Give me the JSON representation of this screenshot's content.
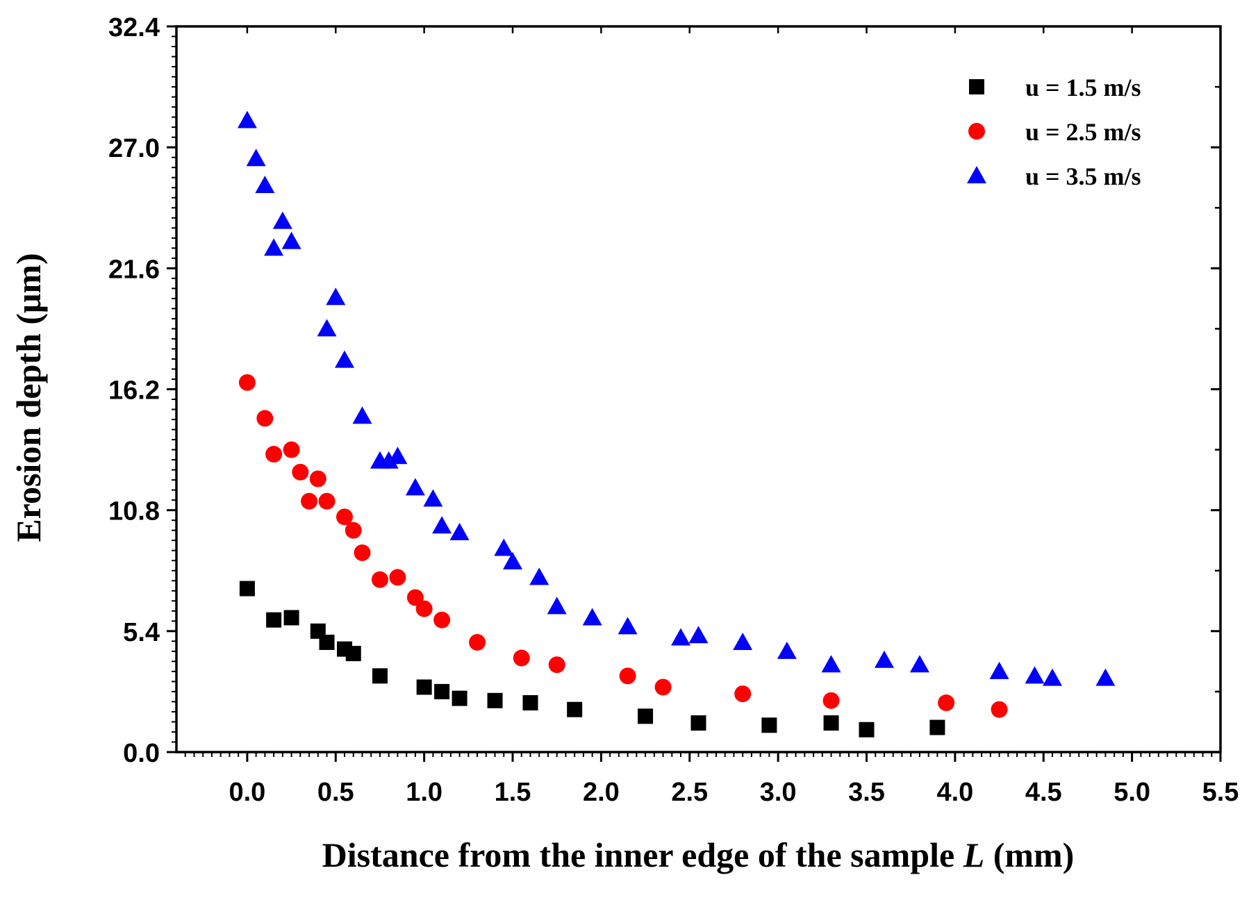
{
  "chart_data": {
    "type": "scatter",
    "title": "",
    "xlabel_main": "Distance from the inner edge of the sample ",
    "xlabel_var": "L",
    "xlabel_unit": " (mm)",
    "ylabel": "Erosion depth (μm)",
    "xlim": [
      -0.4,
      5.5
    ],
    "ylim": [
      0,
      32.4
    ],
    "x_ticks": [
      0.0,
      0.5,
      1.0,
      1.5,
      2.0,
      2.5,
      3.0,
      3.5,
      4.0,
      4.5,
      5.0,
      5.5
    ],
    "x_tick_labels": [
      "0.0",
      "0.5",
      "1.0",
      "1.5",
      "2.0",
      "2.5",
      "3.0",
      "3.5",
      "4.0",
      "4.5",
      "5.0",
      "5.5"
    ],
    "y_ticks": [
      0.0,
      5.4,
      10.8,
      16.2,
      21.6,
      27.0,
      32.4
    ],
    "y_tick_labels": [
      "0.0",
      "5.4",
      "10.8",
      "16.2",
      "21.6",
      "27.0",
      "32.4"
    ],
    "legend_position": "top-right",
    "series": [
      {
        "name": "u = 1.5 m/s",
        "marker": "square",
        "color": "#000000",
        "x": [
          0.0,
          0.15,
          0.25,
          0.4,
          0.45,
          0.55,
          0.6,
          0.75,
          1.0,
          1.1,
          1.2,
          1.4,
          1.6,
          1.85,
          2.25,
          2.55,
          2.95,
          3.3,
          3.5,
          3.9
        ],
        "y": [
          7.3,
          5.9,
          6.0,
          5.4,
          4.9,
          4.6,
          4.4,
          3.4,
          2.9,
          2.7,
          2.4,
          2.3,
          2.2,
          1.9,
          1.6,
          1.3,
          1.2,
          1.3,
          1.0,
          1.1
        ]
      },
      {
        "name": "u = 2.5 m/s",
        "marker": "circle",
        "color": "#ff0000",
        "x": [
          0.0,
          0.1,
          0.15,
          0.25,
          0.3,
          0.35,
          0.4,
          0.45,
          0.55,
          0.6,
          0.65,
          0.75,
          0.85,
          0.95,
          1.0,
          1.1,
          1.3,
          1.55,
          1.75,
          2.15,
          2.35,
          2.8,
          3.3,
          3.95,
          4.25
        ],
        "y": [
          16.5,
          14.9,
          13.3,
          13.5,
          12.5,
          11.2,
          12.2,
          11.2,
          10.5,
          9.9,
          8.9,
          7.7,
          7.8,
          6.9,
          6.4,
          5.9,
          4.9,
          4.2,
          3.9,
          3.4,
          2.9,
          2.6,
          2.3,
          2.2,
          1.9
        ]
      },
      {
        "name": "u = 3.5 m/s",
        "marker": "triangle",
        "color": "#0000ff",
        "x": [
          0.0,
          0.05,
          0.1,
          0.15,
          0.2,
          0.25,
          0.45,
          0.5,
          0.55,
          0.65,
          0.75,
          0.8,
          0.85,
          0.95,
          1.05,
          1.1,
          1.2,
          1.45,
          1.5,
          1.65,
          1.75,
          1.95,
          2.15,
          2.45,
          2.55,
          2.8,
          3.05,
          3.3,
          3.6,
          3.8,
          4.25,
          4.45,
          4.55,
          4.85
        ],
        "y": [
          28.2,
          26.5,
          25.3,
          22.5,
          23.7,
          22.8,
          18.9,
          20.3,
          17.5,
          15.0,
          13.0,
          13.0,
          13.2,
          11.8,
          11.3,
          10.1,
          9.8,
          9.1,
          8.5,
          7.8,
          6.5,
          6.0,
          5.6,
          5.1,
          5.2,
          4.9,
          4.5,
          3.9,
          4.1,
          3.9,
          3.6,
          3.4,
          3.3,
          3.3
        ]
      }
    ]
  }
}
